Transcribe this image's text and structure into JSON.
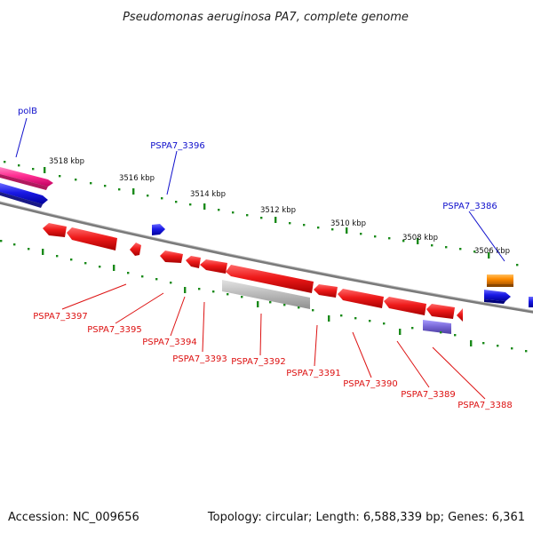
{
  "title": "Pseudomonas aeruginosa PA7, complete genome",
  "footer": {
    "accession": "Accession: NC_009656",
    "summary": "Topology: circular; Length: 6,588,339 bp; Genes: 6,361"
  },
  "scale_labels": [
    "3518 kbp",
    "3516 kbp",
    "3514 kbp",
    "3512 kbp",
    "3510 kbp",
    "3508 kbp",
    "3506 kbp"
  ],
  "gene_labels_top": [
    "polB",
    "PSPA7_3396",
    "PSPA7_3386"
  ],
  "gene_labels_bottom": [
    "PSPA7_3397",
    "PSPA7_3395",
    "PSPA7_3394",
    "PSPA7_3393",
    "PSPA7_3392",
    "PSPA7_3391",
    "PSPA7_3390",
    "PSPA7_3389",
    "PSPA7_3388"
  ],
  "colors": {
    "forward_gene": "#1a1ae6",
    "reverse_gene": "#e61a1a",
    "rna_gene": "#ff3399",
    "pseudo_gene": "#b8b8b8",
    "trna_gene": "#ff8c00",
    "other_gene": "#7a6ad8",
    "backbone": "#888888",
    "tick": "#1a8a1a"
  }
}
